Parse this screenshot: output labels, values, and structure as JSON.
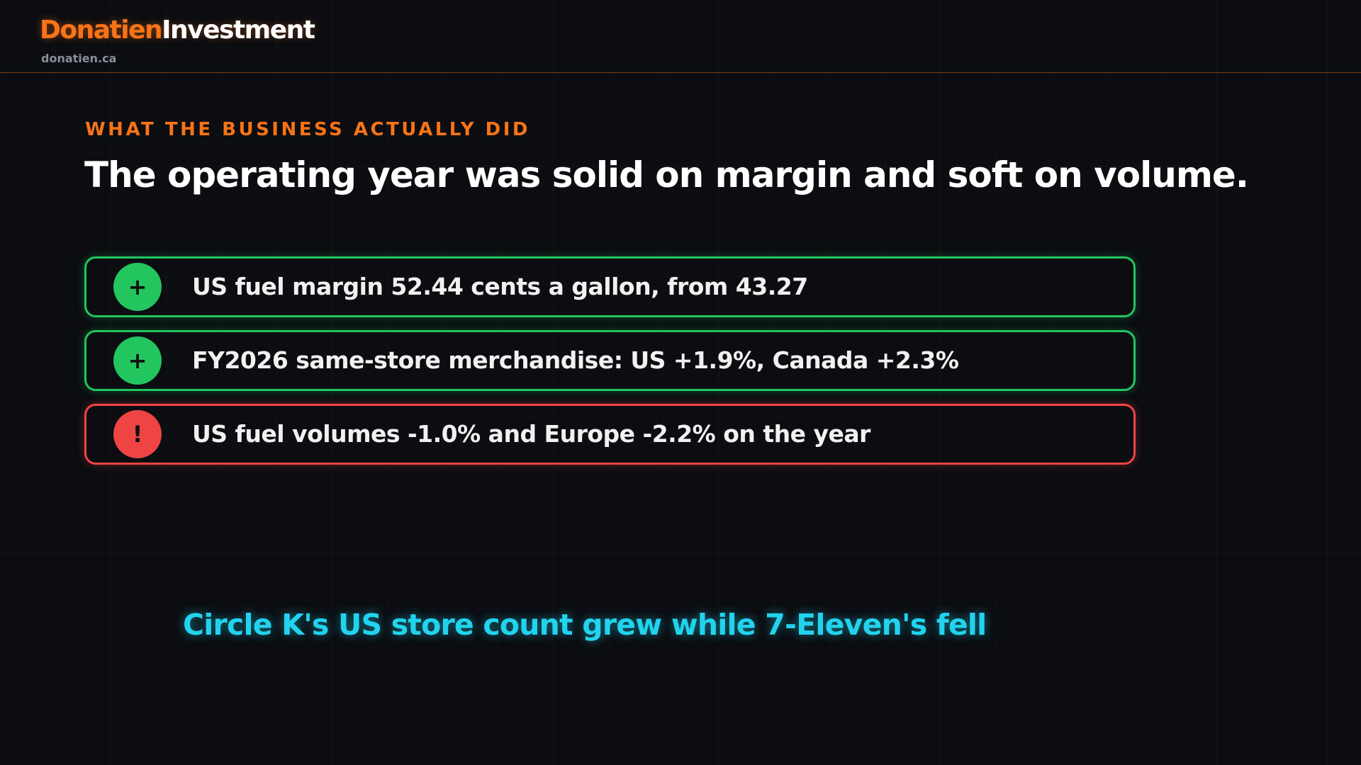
{
  "header": {
    "brand_primary": "Donatien",
    "brand_secondary": "Investment",
    "url": "donatien.ca"
  },
  "slide": {
    "eyebrow": "WHAT THE BUSINESS ACTUALLY DID",
    "title": "The operating year was solid on margin and soft on volume.",
    "items": [
      {
        "icon": "+",
        "text": "US fuel margin 52.44 cents a gallon, from 43.27",
        "color": "#22c55e"
      },
      {
        "icon": "+",
        "text": "FY2026 same-store merchandise: US +1.9%, Canada +2.3%",
        "color": "#22c55e"
      },
      {
        "icon": "!",
        "text": "US fuel volumes -1.0% and Europe -2.2% on the year",
        "color": "#ef4444"
      }
    ],
    "callout": "Circle K's US store count grew while 7-Eleven's fell"
  }
}
